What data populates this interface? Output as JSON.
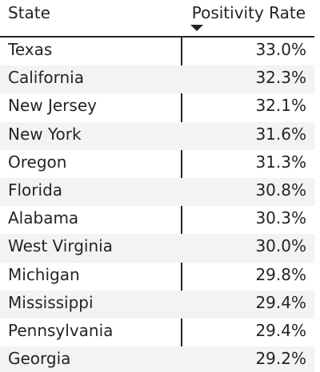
{
  "chart_data": {
    "type": "table",
    "columns": [
      "State",
      "Positivity Rate"
    ],
    "sort": {
      "column": "Positivity Rate",
      "direction": "descending"
    },
    "rows": [
      {
        "state": "Texas",
        "rate": "33.0%"
      },
      {
        "state": "California",
        "rate": "32.3%"
      },
      {
        "state": "New Jersey",
        "rate": "32.1%"
      },
      {
        "state": "New York",
        "rate": "31.6%"
      },
      {
        "state": "Oregon",
        "rate": "31.3%"
      },
      {
        "state": "Florida",
        "rate": "30.8%"
      },
      {
        "state": "Alabama",
        "rate": "30.3%"
      },
      {
        "state": "West Virginia",
        "rate": "30.0%"
      },
      {
        "state": "Michigan",
        "rate": "29.8%"
      },
      {
        "state": "Mississippi",
        "rate": "29.4%"
      },
      {
        "state": "Pennsylvania",
        "rate": "29.4%"
      },
      {
        "state": "Georgia",
        "rate": "29.2%"
      }
    ]
  },
  "colors": {
    "text": "#252423",
    "alt_row": "#f3f3f3",
    "background": "#ffffff"
  },
  "icons": {
    "sort": "sort-descending-icon"
  }
}
